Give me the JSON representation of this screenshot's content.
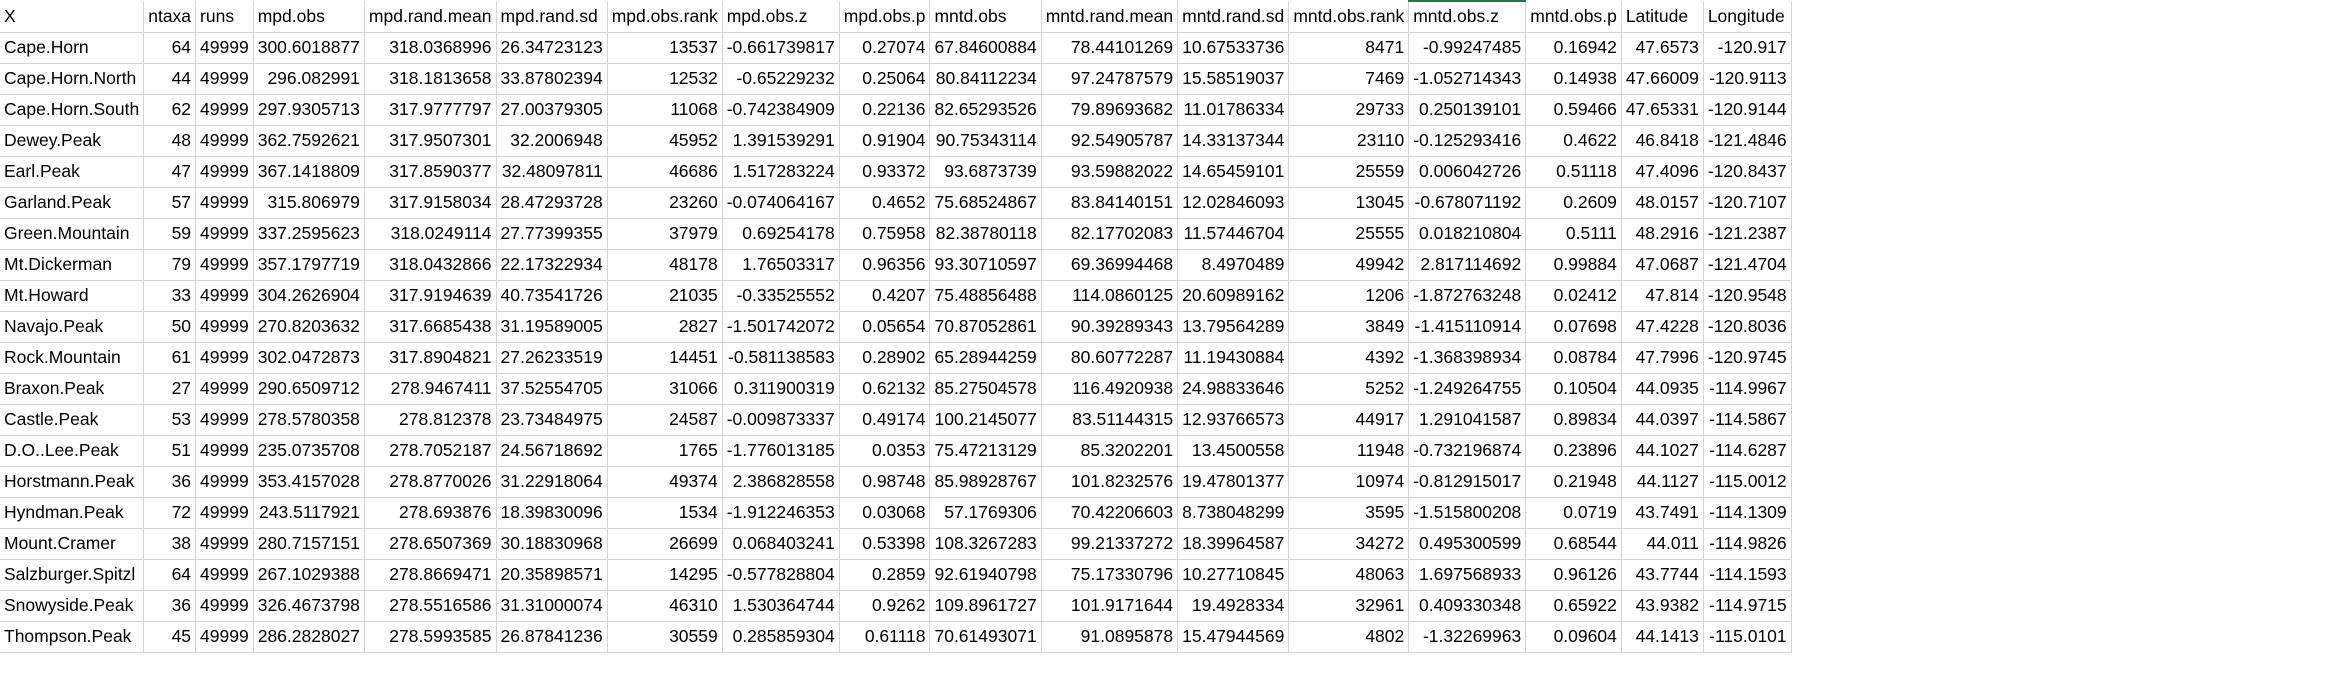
{
  "spreadsheet": {
    "selected_column_index": 13,
    "headers": [
      "X",
      "ntaxa",
      "runs",
      "mpd.obs",
      "mpd.rand.mean",
      "mpd.rand.sd",
      "mpd.obs.rank",
      "mpd.obs.z",
      "mpd.obs.p",
      "mntd.obs",
      "mntd.rand.mean",
      "mntd.rand.sd",
      "mntd.obs.rank",
      "mntd.obs.z",
      "mntd.obs.p",
      "Latitude",
      "Longitude"
    ],
    "rows": [
      [
        "Cape.Horn",
        "64",
        "49999",
        "300.6018877",
        "318.0368996",
        "26.34723123",
        "13537",
        "-0.661739817",
        "0.27074",
        "67.84600884",
        "78.44101269",
        "10.67533736",
        "8471",
        "-0.99247485",
        "0.16942",
        "47.6573",
        "-120.917"
      ],
      [
        "Cape.Horn.North",
        "44",
        "49999",
        "296.082991",
        "318.1813658",
        "33.87802394",
        "12532",
        "-0.65229232",
        "0.25064",
        "80.84112234",
        "97.24787579",
        "15.58519037",
        "7469",
        "-1.052714343",
        "0.14938",
        "47.66009",
        "-120.9113"
      ],
      [
        "Cape.Horn.South",
        "62",
        "49999",
        "297.9305713",
        "317.9777797",
        "27.00379305",
        "11068",
        "-0.742384909",
        "0.22136",
        "82.65293526",
        "79.89693682",
        "11.01786334",
        "29733",
        "0.250139101",
        "0.59466",
        "47.65331",
        "-120.9144"
      ],
      [
        "Dewey.Peak",
        "48",
        "49999",
        "362.7592621",
        "317.9507301",
        "32.2006948",
        "45952",
        "1.391539291",
        "0.91904",
        "90.75343114",
        "92.54905787",
        "14.33137344",
        "23110",
        "-0.125293416",
        "0.4622",
        "46.8418",
        "-121.4846"
      ],
      [
        "Earl.Peak",
        "47",
        "49999",
        "367.1418809",
        "317.8590377",
        "32.48097811",
        "46686",
        "1.517283224",
        "0.93372",
        "93.6873739",
        "93.59882022",
        "14.65459101",
        "25559",
        "0.006042726",
        "0.51118",
        "47.4096",
        "-120.8437"
      ],
      [
        "Garland.Peak",
        "57",
        "49999",
        "315.806979",
        "317.9158034",
        "28.47293728",
        "23260",
        "-0.074064167",
        "0.4652",
        "75.68524867",
        "83.84140151",
        "12.02846093",
        "13045",
        "-0.678071192",
        "0.2609",
        "48.0157",
        "-120.7107"
      ],
      [
        "Green.Mountain",
        "59",
        "49999",
        "337.2595623",
        "318.0249114",
        "27.77399355",
        "37979",
        "0.69254178",
        "0.75958",
        "82.38780118",
        "82.17702083",
        "11.57446704",
        "25555",
        "0.018210804",
        "0.5111",
        "48.2916",
        "-121.2387"
      ],
      [
        "Mt.Dickerman",
        "79",
        "49999",
        "357.1797719",
        "318.0432866",
        "22.17322934",
        "48178",
        "1.76503317",
        "0.96356",
        "93.30710597",
        "69.36994468",
        "8.4970489",
        "49942",
        "2.817114692",
        "0.99884",
        "47.0687",
        "-121.4704"
      ],
      [
        "Mt.Howard",
        "33",
        "49999",
        "304.2626904",
        "317.9194639",
        "40.73541726",
        "21035",
        "-0.33525552",
        "0.4207",
        "75.48856488",
        "114.0860125",
        "20.60989162",
        "1206",
        "-1.872763248",
        "0.02412",
        "47.814",
        "-120.9548"
      ],
      [
        "Navajo.Peak",
        "50",
        "49999",
        "270.8203632",
        "317.6685438",
        "31.19589005",
        "2827",
        "-1.501742072",
        "0.05654",
        "70.87052861",
        "90.39289343",
        "13.79564289",
        "3849",
        "-1.415110914",
        "0.07698",
        "47.4228",
        "-120.8036"
      ],
      [
        "Rock.Mountain",
        "61",
        "49999",
        "302.0472873",
        "317.8904821",
        "27.26233519",
        "14451",
        "-0.581138583",
        "0.28902",
        "65.28944259",
        "80.60772287",
        "11.19430884",
        "4392",
        "-1.368398934",
        "0.08784",
        "47.7996",
        "-120.9745"
      ],
      [
        "Braxon.Peak",
        "27",
        "49999",
        "290.6509712",
        "278.9467411",
        "37.52554705",
        "31066",
        "0.311900319",
        "0.62132",
        "85.27504578",
        "116.4920938",
        "24.98833646",
        "5252",
        "-1.249264755",
        "0.10504",
        "44.0935",
        "-114.9967"
      ],
      [
        "Castle.Peak",
        "53",
        "49999",
        "278.5780358",
        "278.812378",
        "23.73484975",
        "24587",
        "-0.009873337",
        "0.49174",
        "100.2145077",
        "83.51144315",
        "12.93766573",
        "44917",
        "1.291041587",
        "0.89834",
        "44.0397",
        "-114.5867"
      ],
      [
        "D.O..Lee.Peak",
        "51",
        "49999",
        "235.0735708",
        "278.7052187",
        "24.56718692",
        "1765",
        "-1.776013185",
        "0.0353",
        "75.47213129",
        "85.3202201",
        "13.4500558",
        "11948",
        "-0.732196874",
        "0.23896",
        "44.1027",
        "-114.6287"
      ],
      [
        "Horstmann.Peak",
        "36",
        "49999",
        "353.4157028",
        "278.8770026",
        "31.22918064",
        "49374",
        "2.386828558",
        "0.98748",
        "85.98928767",
        "101.8232576",
        "19.47801377",
        "10974",
        "-0.812915017",
        "0.21948",
        "44.1127",
        "-115.0012"
      ],
      [
        "Hyndman.Peak",
        "72",
        "49999",
        "243.5117921",
        "278.693876",
        "18.39830096",
        "1534",
        "-1.912246353",
        "0.03068",
        "57.1769306",
        "70.42206603",
        "8.738048299",
        "3595",
        "-1.515800208",
        "0.0719",
        "43.7491",
        "-114.1309"
      ],
      [
        "Mount.Cramer",
        "38",
        "49999",
        "280.7157151",
        "278.6507369",
        "30.18830968",
        "26699",
        "0.068403241",
        "0.53398",
        "108.3267283",
        "99.21337272",
        "18.39964587",
        "34272",
        "0.495300599",
        "0.68544",
        "44.011",
        "-114.9826"
      ],
      [
        "Salzburger.Spitzl",
        "64",
        "49999",
        "267.1029388",
        "278.8669471",
        "20.35898571",
        "14295",
        "-0.577828804",
        "0.2859",
        "92.61940798",
        "75.17330796",
        "10.27710845",
        "48063",
        "1.697568933",
        "0.96126",
        "43.7744",
        "-114.1593"
      ],
      [
        "Snowyside.Peak",
        "36",
        "49999",
        "326.4673798",
        "278.5516586",
        "31.31000074",
        "46310",
        "1.530364744",
        "0.9262",
        "109.8961727",
        "101.9171644",
        "19.4928334",
        "32961",
        "0.409330348",
        "0.65922",
        "43.9382",
        "-114.9715"
      ],
      [
        "Thompson.Peak",
        "45",
        "49999",
        "286.2828027",
        "278.5993585",
        "26.87841236",
        "30559",
        "0.285859304",
        "0.61118",
        "70.61493071",
        "91.0895878",
        "15.47944569",
        "4802",
        "-1.32269963",
        "0.09604",
        "44.1413",
        "-115.0101"
      ]
    ]
  }
}
